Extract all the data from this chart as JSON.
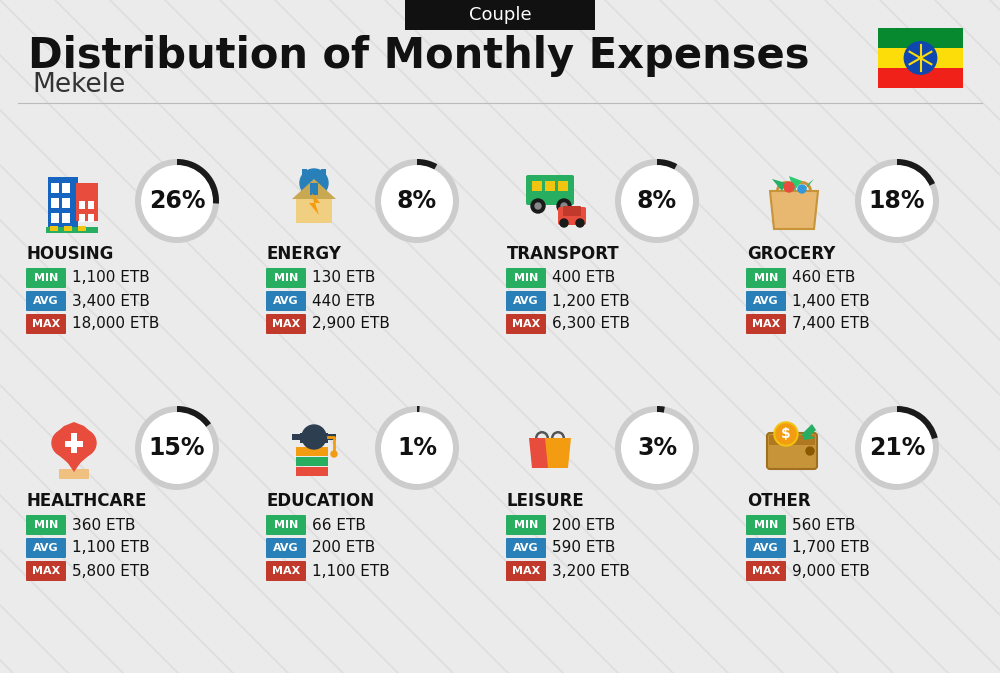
{
  "title": "Distribution of Monthly Expenses",
  "subtitle": "Couple",
  "city": "Mekele",
  "background_color": "#ebebeb",
  "categories": [
    {
      "name": "HOUSING",
      "percent": 26,
      "emoji": "🏗",
      "min": "1,100 ETB",
      "avg": "3,400 ETB",
      "max": "18,000 ETB",
      "row": 0,
      "col": 0
    },
    {
      "name": "ENERGY",
      "percent": 8,
      "emoji": "⚡",
      "min": "130 ETB",
      "avg": "440 ETB",
      "max": "2,900 ETB",
      "row": 0,
      "col": 1
    },
    {
      "name": "TRANSPORT",
      "percent": 8,
      "emoji": "🚌",
      "min": "400 ETB",
      "avg": "1,200 ETB",
      "max": "6,300 ETB",
      "row": 0,
      "col": 2
    },
    {
      "name": "GROCERY",
      "percent": 18,
      "emoji": "🛒",
      "min": "460 ETB",
      "avg": "1,400 ETB",
      "max": "7,400 ETB",
      "row": 0,
      "col": 3
    },
    {
      "name": "HEALTHCARE",
      "percent": 15,
      "emoji": "❤",
      "min": "360 ETB",
      "avg": "1,100 ETB",
      "max": "5,800 ETB",
      "row": 1,
      "col": 0
    },
    {
      "name": "EDUCATION",
      "percent": 1,
      "emoji": "🎓",
      "min": "66 ETB",
      "avg": "200 ETB",
      "max": "1,100 ETB",
      "row": 1,
      "col": 1
    },
    {
      "name": "LEISURE",
      "percent": 3,
      "emoji": "🛍",
      "min": "200 ETB",
      "avg": "590 ETB",
      "max": "3,200 ETB",
      "row": 1,
      "col": 2
    },
    {
      "name": "OTHER",
      "percent": 21,
      "emoji": "👜",
      "min": "560 ETB",
      "avg": "1,700 ETB",
      "max": "9,000 ETB",
      "row": 1,
      "col": 3
    }
  ],
  "color_min": "#27ae60",
  "color_avg": "#2980b9",
  "color_max": "#c0392b",
  "arc_dark": "#1a1a1a",
  "arc_light": "#cccccc",
  "text_dark": "#111111",
  "text_mid": "#333333",
  "flag_green": "#078930",
  "flag_yellow": "#FCDD09",
  "flag_red": "#EF2118",
  "flag_blue": "#0F47AF",
  "title_fs": 30,
  "subtitle_fs": 13,
  "city_fs": 19,
  "pct_fs": 17,
  "cat_fs": 12,
  "badge_fs": 8,
  "val_fs": 11
}
